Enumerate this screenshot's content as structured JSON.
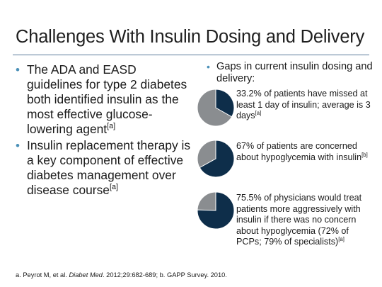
{
  "slide": {
    "title": "Challenges With Insulin Dosing and Delivery"
  },
  "left_bullets": [
    {
      "text": "The ADA and EASD guidelines for type 2 diabetes both identified insulin as the most effective glucose-lowering agent",
      "ref": "[a]"
    },
    {
      "text": "Insulin replacement therapy is a key component of effective diabetes management over disease course",
      "ref": "[a]"
    }
  ],
  "right": {
    "heading": "Gaps in current insulin dosing and delivery:",
    "stats": [
      {
        "text": "33.2% of patients have missed at least 1 day of insulin; average is 3 days",
        "ref": "[a]",
        "value": 33.2
      },
      {
        "text": "67% of patients are concerned about hypoglycemia with insulin",
        "ref": "[b]",
        "value": 67
      },
      {
        "text": "75.5% of physicians would treat patients more aggressively with insulin if there was no concern about hypoglycemia (72% of PCPs; 79% of specialists)",
        "ref": "[a]",
        "value": 75.5
      }
    ]
  },
  "colors": {
    "pie_fill": "#0e2e4a",
    "pie_rest": "#8a8d90",
    "bullet": "#4a90b8",
    "rule": "#5a7a9a"
  },
  "footnote": {
    "prefix": "a. Peyrot M, et al. ",
    "journal": "Diabet Med",
    "suffix": ". 2012;29:682-689; b. GAPP Survey. 2010."
  }
}
